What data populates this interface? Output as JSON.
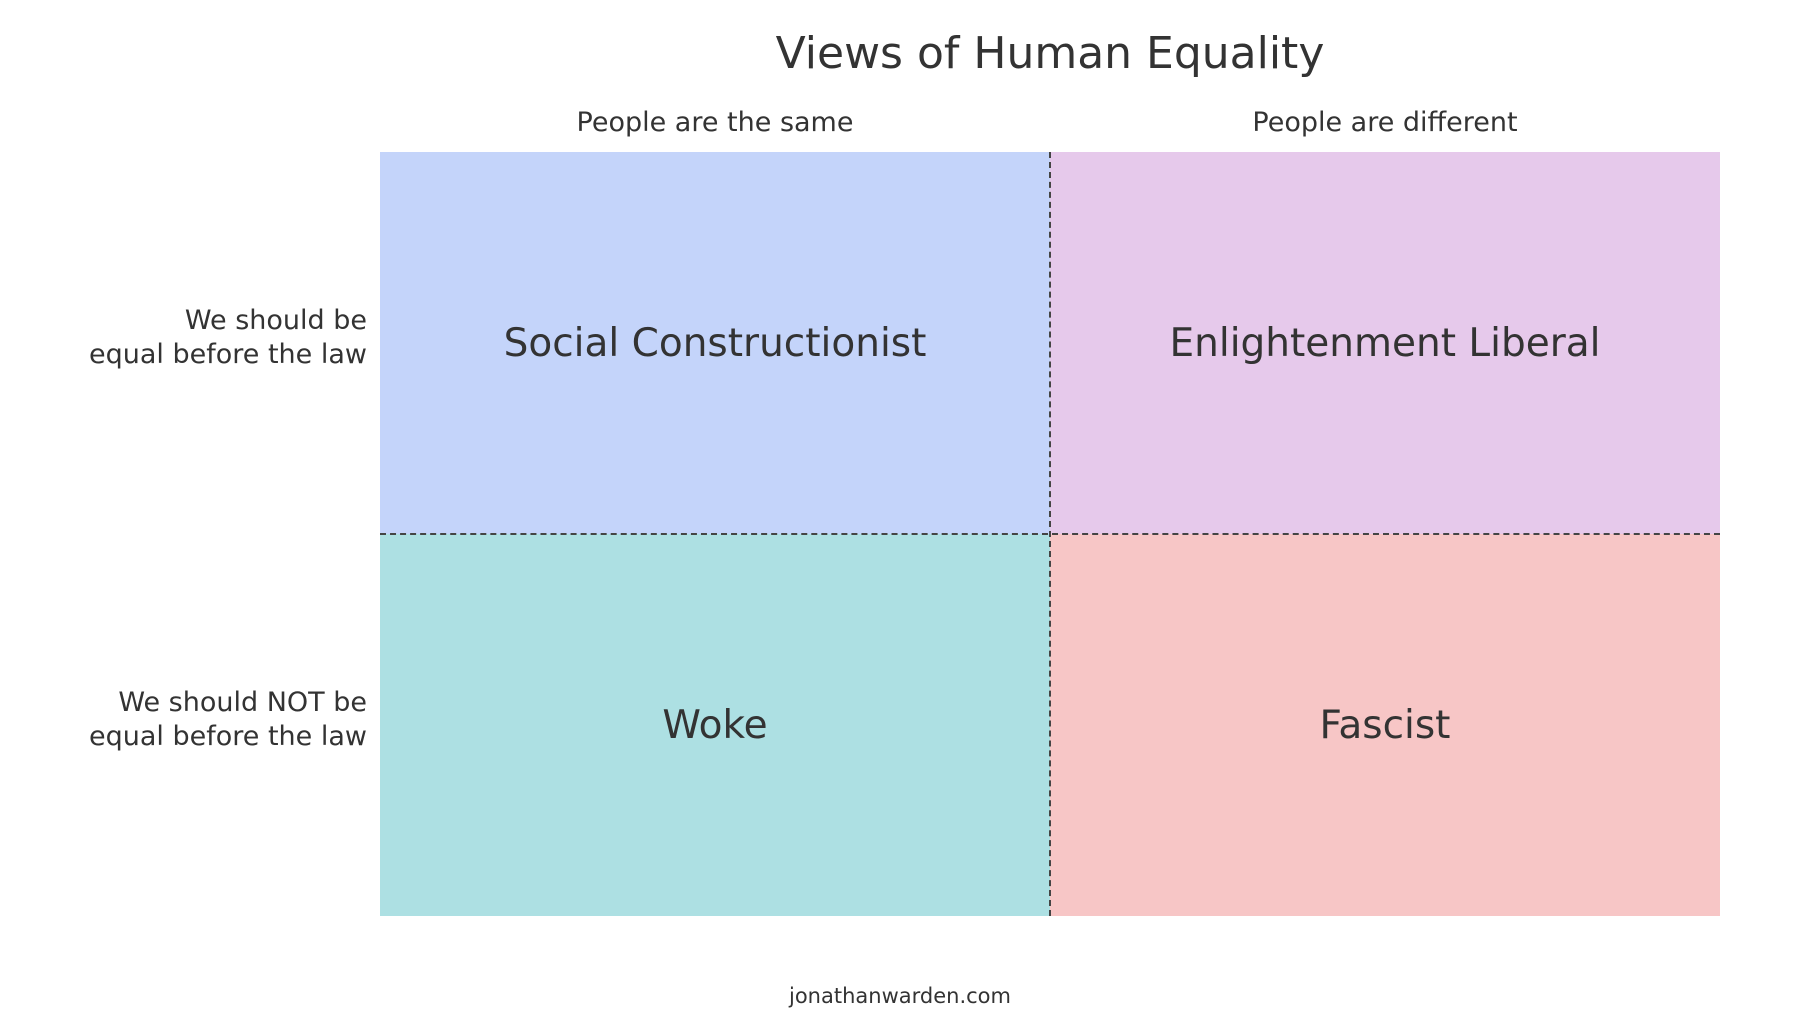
{
  "title": "Views of Human Equality",
  "columns": [
    {
      "label": "People are the same"
    },
    {
      "label": "People are different"
    }
  ],
  "rows": [
    {
      "line1": "We should be",
      "line2": "equal before the law"
    },
    {
      "line1": "We should NOT be",
      "line2": "equal before the law"
    }
  ],
  "quadrants": [
    {
      "label": "Social Constructionist",
      "color": "#c4d4fa"
    },
    {
      "label": "Enlightenment Liberal",
      "color": "#e6c9eb"
    },
    {
      "label": "Woke",
      "color": "#ade0e3"
    },
    {
      "label": "Fascist",
      "color": "#f7c6c6"
    }
  ],
  "footer": "jonathanwarden.com"
}
